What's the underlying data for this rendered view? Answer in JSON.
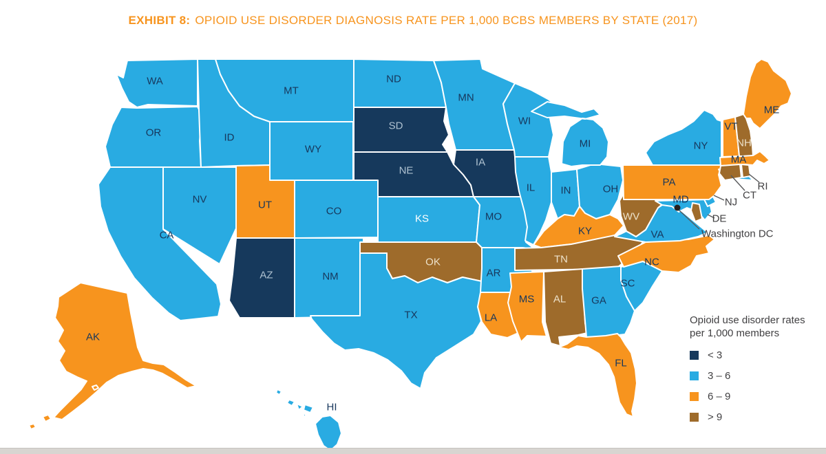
{
  "title": {
    "prefix": "EXHIBIT 8:",
    "text": "OPIOID USE DISORDER DIAGNOSIS RATE PER 1,000 BCBS MEMBERS BY STATE (2017)"
  },
  "legend": {
    "title_line1": "Opioid use disorder rates",
    "title_line2": "per 1,000 members",
    "items": [
      {
        "label": "< 3",
        "color": "#16395C"
      },
      {
        "label": "3 – 6",
        "color": "#29ABE2"
      },
      {
        "label": "6 – 9",
        "color": "#F7941E"
      },
      {
        "label": "> 9",
        "color": "#9E6B2B"
      }
    ]
  },
  "callouts": {
    "ri": "RI",
    "ct": "CT",
    "nj": "NJ",
    "de": "DE",
    "dc": "Washington DC"
  },
  "chart_data": {
    "type": "choropleth",
    "title": "Opioid use disorder diagnosis rate per 1,000 BCBS members by state (2017)",
    "unit": "diagnoses per 1,000 BCBS members",
    "legend_position": "bottom-right",
    "categories": [
      {
        "range": "< 3",
        "color": "#16395C",
        "states": [
          "SD",
          "NE",
          "IA",
          "AZ"
        ]
      },
      {
        "range": "3 – 6",
        "color": "#29ABE2",
        "states": [
          "WA",
          "OR",
          "CA",
          "NV",
          "ID",
          "MT",
          "WY",
          "CO",
          "NM",
          "ND",
          "KS",
          "TX",
          "MN",
          "MO",
          "AR",
          "WI",
          "IL",
          "MI",
          "IN",
          "OH",
          "GA",
          "SC",
          "VA",
          "NY",
          "NJ",
          "MD",
          "HI"
        ]
      },
      {
        "range": "6 – 9",
        "color": "#F7941E",
        "states": [
          "UT",
          "KY",
          "MS",
          "LA",
          "FL",
          "NC",
          "PA",
          "VT",
          "MA",
          "ME",
          "AK"
        ]
      },
      {
        "range": "> 9",
        "color": "#9E6B2B",
        "states": [
          "OK",
          "TN",
          "AL",
          "WV",
          "NH",
          "CT",
          "RI",
          "DE"
        ]
      }
    ],
    "states": {
      "WA": "3 – 6",
      "OR": "3 – 6",
      "CA": "3 – 6",
      "NV": "3 – 6",
      "ID": "3 – 6",
      "MT": "3 – 6",
      "WY": "3 – 6",
      "UT": "6 – 9",
      "CO": "3 – 6",
      "AZ": "< 3",
      "NM": "3 – 6",
      "ND": "3 – 6",
      "SD": "< 3",
      "NE": "< 3",
      "KS": "3 – 6",
      "OK": "> 9",
      "TX": "3 – 6",
      "MN": "3 – 6",
      "IA": "< 3",
      "MO": "3 – 6",
      "AR": "3 – 6",
      "LA": "6 – 9",
      "WI": "3 – 6",
      "IL": "3 – 6",
      "MI": "3 – 6",
      "IN": "3 – 6",
      "OH": "3 – 6",
      "KY": "6 – 9",
      "TN": "> 9",
      "MS": "6 – 9",
      "AL": "> 9",
      "GA": "3 – 6",
      "FL": "6 – 9",
      "SC": "3 – 6",
      "NC": "6 – 9",
      "VA": "3 – 6",
      "WV": "> 9",
      "MD": "3 – 6",
      "DE": "> 9",
      "PA": "6 – 9",
      "NJ": "3 – 6",
      "NY": "3 – 6",
      "CT": "> 9",
      "RI": "> 9",
      "MA": "6 – 9",
      "VT": "6 – 9",
      "NH": "> 9",
      "ME": "6 – 9",
      "AK": "6 – 9",
      "HI": "3 – 6"
    },
    "marker": {
      "label": "Washington DC",
      "style": "black dot"
    }
  }
}
